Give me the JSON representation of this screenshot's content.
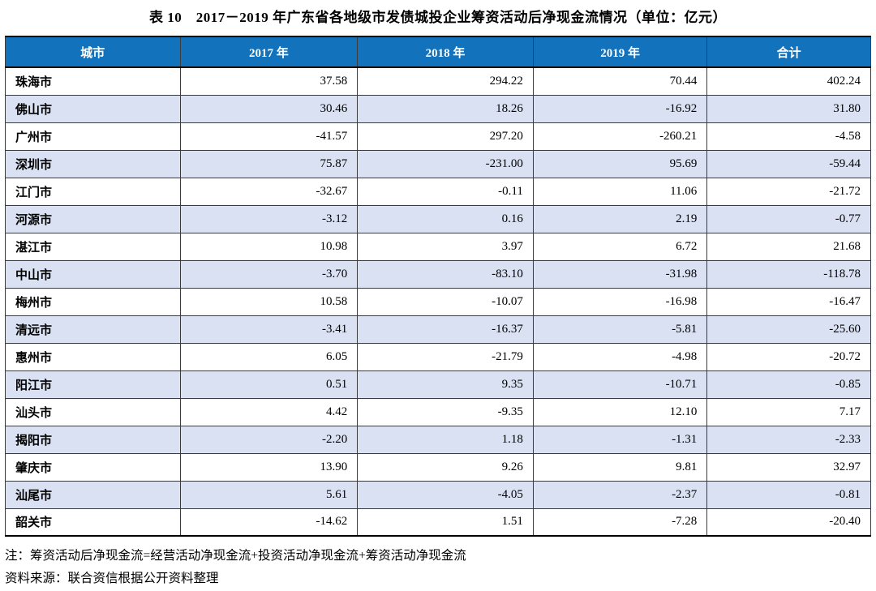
{
  "title": "表 10　2017－2019 年广东省各地级市发债城投企业筹资活动后净现金流情况（单位：亿元）",
  "table": {
    "columns": [
      "城市",
      "2017 年",
      "2018 年",
      "2019 年",
      "合计"
    ],
    "unit": "亿元",
    "rows": [
      {
        "city": "珠海市",
        "values": [
          "37.58",
          "294.22",
          "70.44",
          "402.24"
        ]
      },
      {
        "city": "佛山市",
        "values": [
          "30.46",
          "18.26",
          "-16.92",
          "31.80"
        ]
      },
      {
        "city": "广州市",
        "values": [
          "-41.57",
          "297.20",
          "-260.21",
          "-4.58"
        ]
      },
      {
        "city": "深圳市",
        "values": [
          "75.87",
          "-231.00",
          "95.69",
          "-59.44"
        ]
      },
      {
        "city": "江门市",
        "values": [
          "-32.67",
          "-0.11",
          "11.06",
          "-21.72"
        ]
      },
      {
        "city": "河源市",
        "values": [
          "-3.12",
          "0.16",
          "2.19",
          "-0.77"
        ]
      },
      {
        "city": "湛江市",
        "values": [
          "10.98",
          "3.97",
          "6.72",
          "21.68"
        ]
      },
      {
        "city": "中山市",
        "values": [
          "-3.70",
          "-83.10",
          "-31.98",
          "-118.78"
        ]
      },
      {
        "city": "梅州市",
        "values": [
          "10.58",
          "-10.07",
          "-16.98",
          "-16.47"
        ]
      },
      {
        "city": "清远市",
        "values": [
          "-3.41",
          "-16.37",
          "-5.81",
          "-25.60"
        ]
      },
      {
        "city": "惠州市",
        "values": [
          "6.05",
          "-21.79",
          "-4.98",
          "-20.72"
        ]
      },
      {
        "city": "阳江市",
        "values": [
          "0.51",
          "9.35",
          "-10.71",
          "-0.85"
        ]
      },
      {
        "city": "汕头市",
        "values": [
          "4.42",
          "-9.35",
          "12.10",
          "7.17"
        ]
      },
      {
        "city": "揭阳市",
        "values": [
          "-2.20",
          "1.18",
          "-1.31",
          "-2.33"
        ]
      },
      {
        "city": "肇庆市",
        "values": [
          "13.90",
          "9.26",
          "9.81",
          "32.97"
        ]
      },
      {
        "city": "汕尾市",
        "values": [
          "5.61",
          "-4.05",
          "-2.37",
          "-0.81"
        ]
      },
      {
        "city": "韶关市",
        "values": [
          "-14.62",
          "1.51",
          "-7.28",
          "-20.40"
        ]
      }
    ]
  },
  "notes": {
    "note": "注：筹资活动后净现金流=经营活动净现金流+投资活动净现金流+筹资活动净现金流",
    "source": "资料来源：联合资信根据公开资料整理"
  },
  "colors": {
    "header_bg": "#1272BC",
    "header_text": "#FFFFFF",
    "row_alt_bg": "#D9E1F2"
  }
}
